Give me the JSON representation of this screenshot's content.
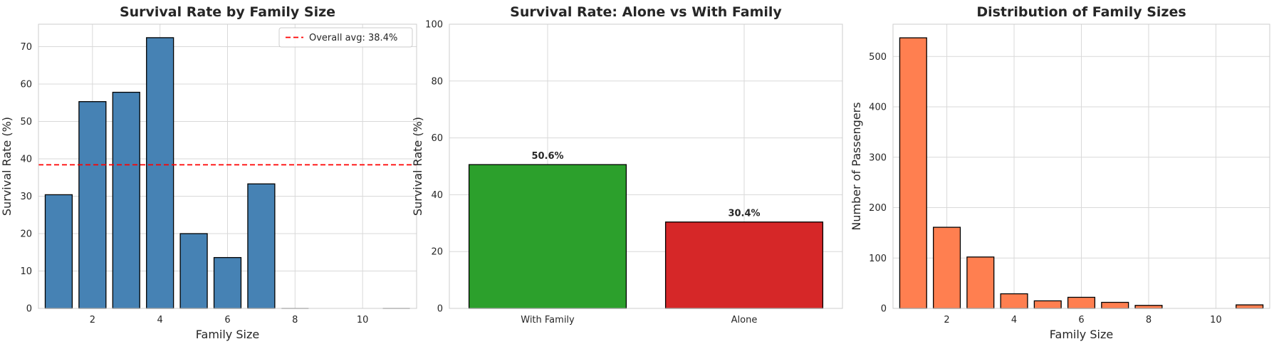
{
  "chart_data": [
    {
      "type": "bar",
      "title": "Survival Rate by Family Size",
      "xlabel": "Family Size",
      "ylabel": "Survival Rate (%)",
      "x": [
        1,
        2,
        3,
        4,
        5,
        6,
        7,
        8,
        11
      ],
      "values": [
        30.4,
        55.3,
        57.8,
        72.4,
        20.0,
        13.6,
        33.3,
        0,
        0
      ],
      "xlim": [
        0.4,
        11.6
      ],
      "ylim": [
        0,
        76
      ],
      "xticks": [
        2,
        4,
        6,
        8,
        10
      ],
      "yticks": [
        0,
        10,
        20,
        30,
        40,
        50,
        60,
        70
      ],
      "bar_color": "#4682B4",
      "reference_line": {
        "value": 38.4,
        "label": "Overall avg: 38.4%",
        "color": "#FF0000",
        "style": "dashed"
      },
      "legend_position": "top-right",
      "grid": true
    },
    {
      "type": "bar",
      "title": "Survival Rate: Alone vs With Family",
      "xlabel": "",
      "ylabel": "Survival Rate (%)",
      "categories": [
        "With Family",
        "Alone"
      ],
      "values": [
        50.6,
        30.4
      ],
      "data_labels": [
        "50.6%",
        "30.4%"
      ],
      "colors": [
        "#2CA02C",
        "#D62728"
      ],
      "ylim": [
        0,
        100
      ],
      "yticks": [
        0,
        20,
        40,
        60,
        80,
        100
      ],
      "grid": true
    },
    {
      "type": "bar",
      "title": "Distribution of Family Sizes",
      "xlabel": "Family Size",
      "ylabel": "Number of Passengers",
      "x": [
        1,
        2,
        3,
        4,
        5,
        6,
        7,
        8,
        11
      ],
      "values": [
        537,
        161,
        102,
        29,
        15,
        22,
        12,
        6,
        7
      ],
      "xlim": [
        0.4,
        11.6
      ],
      "ylim": [
        0,
        564
      ],
      "xticks": [
        2,
        4,
        6,
        8,
        10
      ],
      "yticks": [
        0,
        100,
        200,
        300,
        400,
        500
      ],
      "bar_color": "#FF7F50",
      "grid": true
    }
  ]
}
